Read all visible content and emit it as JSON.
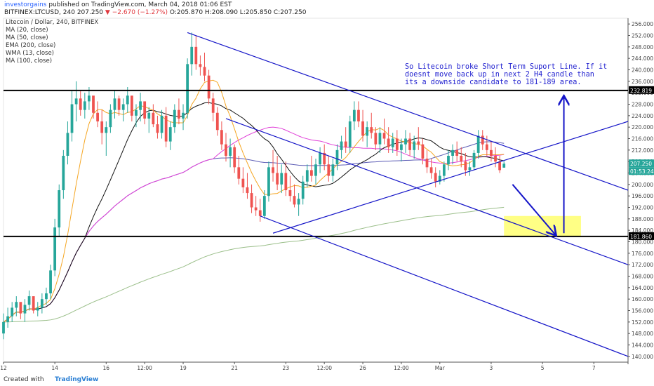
{
  "header": {
    "author": "investorgains",
    "published": "published on TradingView.com, March 04, 2018 01:06 EST",
    "symbol": "BITFINEX:LTCUSD, 240",
    "last": "207.250",
    "change": "▼ −2.670 (−1.27%)",
    "ohlc": "O:205.870 H:208.090 L:205.850 C:207.250"
  },
  "legend": {
    "title": "Litecoin / Dollar, 240, BITFINEX",
    "items": [
      "MA (20, close)",
      "MA (50, close)",
      "EMA (200, close)",
      "WMA (13, close)",
      "MA (100, close)"
    ]
  },
  "annotation": "So Litecoin broke Short Term Suport Line. If it doesnt move back up in next 2 H4 candle than its a downside candidate to 181-189 area.",
  "price_labels": {
    "resistance": "232.819",
    "support": "181.860",
    "current": "207.250",
    "countdown": "01:53:24"
  },
  "footer": {
    "created": "Created with",
    "brand": "TradingView"
  },
  "colors": {
    "up": "#26a69a",
    "down": "#ef5350",
    "trend": "#1515c8",
    "ma20": "#f5a623",
    "ma50": "#111111",
    "ema200": "#9bbf8a",
    "wma13": "#e040d8",
    "ma100": "#5a5ab4",
    "zone": "#ffff66"
  },
  "chart_data": {
    "type": "candlestick",
    "title": "Litecoin / Dollar, 240, BITFINEX",
    "ylim": [
      138,
      258
    ],
    "yticks": [
      140,
      144,
      148,
      152,
      156,
      160,
      164,
      168,
      172,
      176,
      180,
      184,
      188,
      192,
      196,
      200,
      204,
      208,
      212,
      216,
      220,
      224,
      228,
      232,
      236,
      240,
      244,
      248,
      252,
      256
    ],
    "xticks": [
      {
        "label": "12",
        "x": 0
      },
      {
        "label": "14",
        "x": 12
      },
      {
        "label": "16",
        "x": 24
      },
      {
        "label": "12:00",
        "x": 33
      },
      {
        "label": "19",
        "x": 42
      },
      {
        "label": "21",
        "x": 54
      },
      {
        "label": "23",
        "x": 66
      },
      {
        "label": "12:00",
        "x": 75
      },
      {
        "label": "26",
        "x": 84
      },
      {
        "label": "12:00",
        "x": 93
      },
      {
        "label": "Mar",
        "x": 102
      },
      {
        "label": "3",
        "x": 114
      },
      {
        "label": "5",
        "x": 126
      },
      {
        "label": "7",
        "x": 138
      }
    ],
    "x_max": 146,
    "candles": [
      [
        0,
        148,
        155,
        146,
        152
      ],
      [
        1,
        152,
        157,
        150,
        154
      ],
      [
        2,
        154,
        159,
        152,
        157
      ],
      [
        3,
        157,
        161,
        154,
        159
      ],
      [
        4,
        159,
        158,
        153,
        155
      ],
      [
        5,
        155,
        160,
        152,
        158
      ],
      [
        6,
        158,
        163,
        156,
        161
      ],
      [
        7,
        161,
        160,
        155,
        156
      ],
      [
        8,
        156,
        159,
        154,
        157
      ],
      [
        9,
        157,
        162,
        155,
        160
      ],
      [
        10,
        160,
        164,
        158,
        162
      ],
      [
        11,
        162,
        172,
        160,
        170
      ],
      [
        12,
        170,
        188,
        168,
        185
      ],
      [
        13,
        185,
        200,
        182,
        198
      ],
      [
        14,
        198,
        212,
        195,
        210
      ],
      [
        15,
        210,
        222,
        207,
        218
      ],
      [
        16,
        218,
        233,
        215,
        228
      ],
      [
        17,
        228,
        236,
        222,
        230
      ],
      [
        18,
        230,
        233,
        224,
        226
      ],
      [
        19,
        226,
        232,
        223,
        229
      ],
      [
        20,
        229,
        234,
        226,
        231
      ],
      [
        21,
        231,
        230,
        223,
        225
      ],
      [
        22,
        225,
        229,
        220,
        222
      ],
      [
        23,
        222,
        226,
        214,
        218
      ],
      [
        24,
        218,
        222,
        210,
        220
      ],
      [
        25,
        220,
        228,
        218,
        226
      ],
      [
        26,
        226,
        233,
        223,
        230
      ],
      [
        27,
        230,
        231,
        224,
        226
      ],
      [
        28,
        226,
        230,
        222,
        228
      ],
      [
        29,
        228,
        234,
        225,
        231
      ],
      [
        30,
        231,
        230,
        222,
        224
      ],
      [
        31,
        224,
        228,
        220,
        226
      ],
      [
        32,
        226,
        232,
        222,
        229
      ],
      [
        33,
        229,
        228,
        221,
        223
      ],
      [
        34,
        223,
        227,
        218,
        225
      ],
      [
        35,
        225,
        228,
        220,
        221
      ],
      [
        36,
        221,
        224,
        216,
        218
      ],
      [
        37,
        218,
        226,
        216,
        224
      ],
      [
        38,
        224,
        227,
        213,
        215
      ],
      [
        39,
        215,
        222,
        212,
        220
      ],
      [
        40,
        220,
        228,
        218,
        226
      ],
      [
        41,
        226,
        230,
        221,
        223
      ],
      [
        42,
        223,
        228,
        219,
        225
      ],
      [
        43,
        225,
        244,
        223,
        242
      ],
      [
        44,
        242,
        253,
        238,
        248
      ],
      [
        45,
        248,
        252,
        240,
        242
      ],
      [
        46,
        242,
        245,
        238,
        241
      ],
      [
        47,
        241,
        246,
        236,
        238
      ],
      [
        48,
        238,
        240,
        228,
        230
      ],
      [
        49,
        230,
        232,
        222,
        225
      ],
      [
        50,
        225,
        227,
        217,
        219
      ],
      [
        51,
        219,
        222,
        212,
        214
      ],
      [
        52,
        214,
        218,
        208,
        210
      ],
      [
        53,
        210,
        216,
        206,
        213
      ],
      [
        54,
        213,
        214,
        204,
        206
      ],
      [
        55,
        206,
        210,
        200,
        202
      ],
      [
        56,
        202,
        206,
        197,
        199
      ],
      [
        57,
        199,
        204,
        195,
        197
      ],
      [
        58,
        197,
        200,
        190,
        192
      ],
      [
        59,
        192,
        196,
        189,
        191
      ],
      [
        60,
        191,
        195,
        187,
        189
      ],
      [
        61,
        189,
        198,
        188,
        196
      ],
      [
        62,
        196,
        208,
        194,
        206
      ],
      [
        63,
        206,
        212,
        201,
        204
      ],
      [
        64,
        204,
        210,
        198,
        200
      ],
      [
        65,
        200,
        207,
        197,
        204
      ],
      [
        66,
        204,
        208,
        196,
        198
      ],
      [
        67,
        198,
        203,
        194,
        196
      ],
      [
        68,
        196,
        200,
        192,
        193
      ],
      [
        69,
        193,
        197,
        189,
        195
      ],
      [
        70,
        195,
        203,
        193,
        201
      ],
      [
        71,
        201,
        207,
        199,
        205
      ],
      [
        72,
        205,
        210,
        201,
        203
      ],
      [
        73,
        203,
        209,
        200,
        207
      ],
      [
        74,
        207,
        213,
        204,
        211
      ],
      [
        75,
        211,
        214,
        205,
        207
      ],
      [
        76,
        207,
        210,
        201,
        203
      ],
      [
        77,
        203,
        209,
        201,
        207
      ],
      [
        78,
        207,
        214,
        205,
        212
      ],
      [
        79,
        212,
        217,
        209,
        215
      ],
      [
        80,
        215,
        220,
        211,
        213
      ],
      [
        81,
        213,
        224,
        211,
        222
      ],
      [
        82,
        222,
        229,
        219,
        226
      ],
      [
        83,
        226,
        229,
        220,
        222
      ],
      [
        84,
        222,
        226,
        215,
        217
      ],
      [
        85,
        217,
        222,
        213,
        220
      ],
      [
        86,
        220,
        225,
        216,
        218
      ],
      [
        87,
        218,
        220,
        212,
        214
      ],
      [
        88,
        214,
        220,
        211,
        218
      ],
      [
        89,
        218,
        223,
        214,
        216
      ],
      [
        90,
        216,
        220,
        211,
        213
      ],
      [
        91,
        213,
        218,
        211,
        216
      ],
      [
        92,
        216,
        219,
        210,
        212
      ],
      [
        93,
        212,
        216,
        208,
        214
      ],
      [
        94,
        214,
        219,
        211,
        216
      ],
      [
        95,
        216,
        218,
        210,
        212
      ],
      [
        96,
        212,
        217,
        209,
        215
      ],
      [
        97,
        215,
        220,
        212,
        214
      ],
      [
        98,
        214,
        216,
        207,
        209
      ],
      [
        99,
        209,
        212,
        204,
        206
      ],
      [
        100,
        206,
        209,
        202,
        204
      ],
      [
        101,
        204,
        206,
        199,
        201
      ],
      [
        102,
        201,
        205,
        200,
        203
      ],
      [
        103,
        203,
        208,
        201,
        207
      ],
      [
        104,
        207,
        212,
        205,
        210
      ],
      [
        105,
        210,
        214,
        207,
        212
      ],
      [
        106,
        212,
        215,
        208,
        210
      ],
      [
        107,
        210,
        213,
        206,
        208
      ],
      [
        108,
        208,
        211,
        203,
        205
      ],
      [
        109,
        205,
        208,
        203,
        206
      ],
      [
        110,
        206,
        212,
        205,
        211
      ],
      [
        111,
        211,
        219,
        209,
        217
      ],
      [
        112,
        217,
        219,
        212,
        214
      ],
      [
        113,
        214,
        217,
        210,
        212
      ],
      [
        114,
        212,
        215,
        208,
        210
      ],
      [
        115,
        210,
        213,
        206,
        208
      ],
      [
        116,
        208,
        210,
        204,
        205
      ],
      [
        117,
        205.87,
        208.09,
        205.85,
        207.25
      ]
    ],
    "levels": [
      232.819,
      181.86
    ],
    "trendlines": [
      {
        "from": [
          43,
          253
        ],
        "to": [
          146,
          198
        ]
      },
      {
        "from": [
          52,
          223
        ],
        "to": [
          146,
          172
        ]
      },
      {
        "from": [
          60,
          189
        ],
        "to": [
          146,
          140
        ]
      },
      {
        "from": [
          63,
          183
        ],
        "to": [
          146,
          222
        ]
      }
    ],
    "target_zone": {
      "x": [
        117,
        135
      ],
      "y": [
        181.86,
        189
      ]
    }
  }
}
